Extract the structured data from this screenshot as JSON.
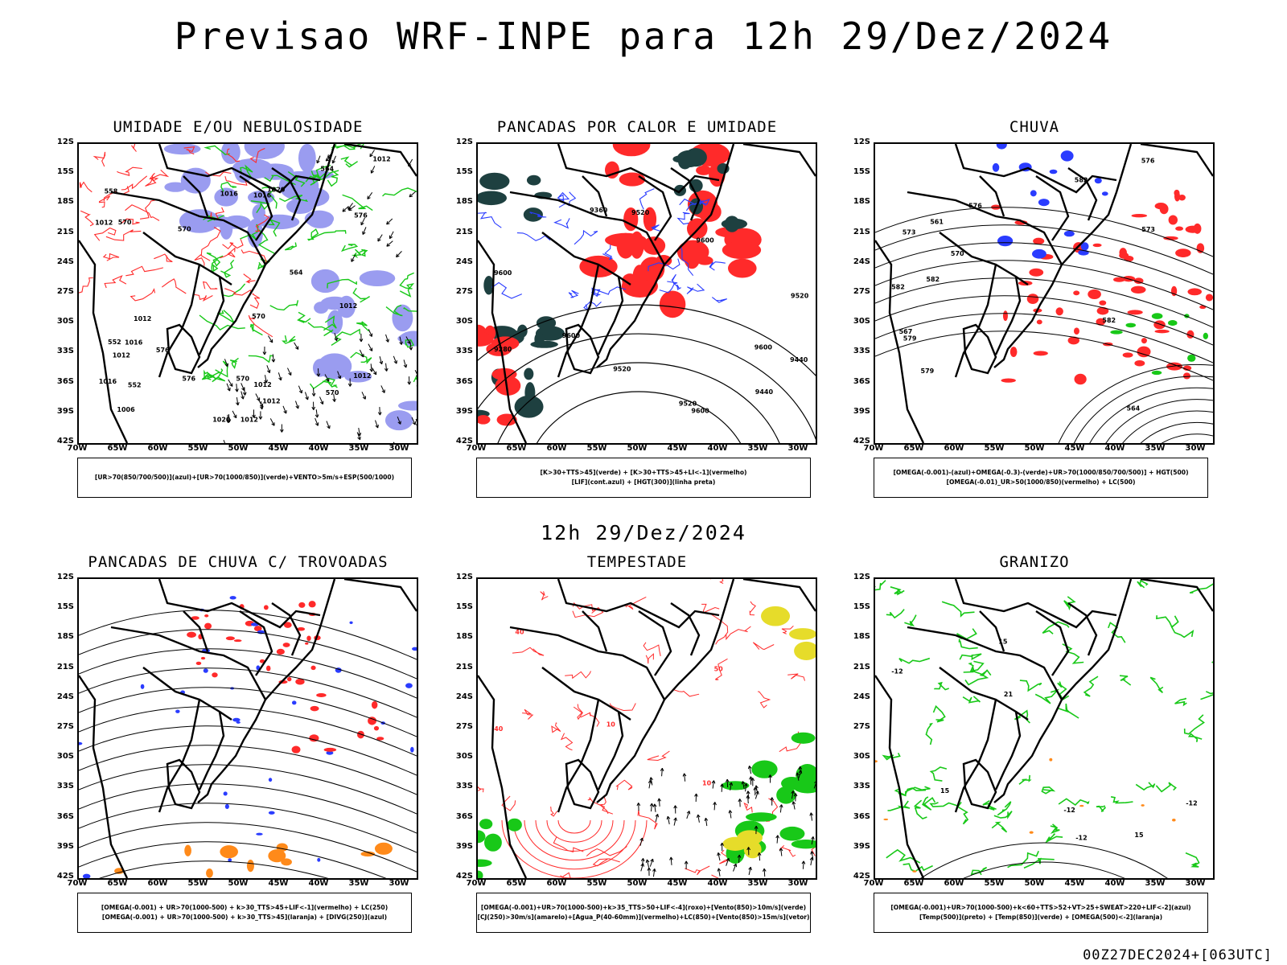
{
  "header": {
    "title": "Previsao WRF-INPE  para 12h 29/Dez/2024"
  },
  "mid_title": "12h 29/Dez/2024",
  "footer": "00Z27DEC2024+[063UTC]",
  "axes": {
    "lat": [
      "12S",
      "15S",
      "18S",
      "21S",
      "24S",
      "27S",
      "30S",
      "33S",
      "36S",
      "39S",
      "42S"
    ],
    "lon": [
      "70W",
      "65W",
      "60W",
      "55W",
      "50W",
      "45W",
      "40W",
      "35W",
      "30W"
    ]
  },
  "colors": {
    "blue": "#2a3cff",
    "lightblue": "#9a9cf0",
    "green": "#18c818",
    "red": "#ff2a2a",
    "darkgreen": "#1e4040",
    "orange": "#ff8a1a",
    "yellow": "#e6dc2a",
    "purple": "#a040c0",
    "black": "#000000"
  },
  "panels": [
    {
      "id": "umidade",
      "title": "UMIDADE E/OU NEBULOSIDADE",
      "legend": [
        "[UR>70(850/700/500)](azul)+[UR>70(1000/850)](verde)+VENTO>5m/s+ESP(500/1000)"
      ],
      "map_labels": [
        "1012",
        "1012",
        "1012",
        "1012",
        "1012",
        "1012",
        "1012",
        "1012",
        "1016",
        "1016",
        "1016",
        "1016",
        "1020",
        "1020",
        "1006",
        "1012",
        "570",
        "570",
        "570",
        "576",
        "576",
        "576",
        "570",
        "564",
        "564",
        "558",
        "552",
        "552",
        "570"
      ]
    },
    {
      "id": "pancadas-calor",
      "title": "PANCADAS POR CALOR E UMIDADE",
      "legend": [
        "[K>30+TTS>45](verde) + [K>30+TTS>45+LI<-1](vermelho)",
        "[LIF](cont.azul) + [HGT(300)](linha preta)"
      ],
      "map_labels": [
        "9600",
        "9600",
        "9600",
        "9600",
        "9600",
        "9520",
        "9520",
        "9520",
        "9520",
        "9440",
        "9440",
        "9360",
        "9280"
      ]
    },
    {
      "id": "chuva",
      "title": "CHUVA",
      "legend": [
        "[OMEGA(-0.001)-(azul)+OMEGA(-0.3)-(verde)+UR>70(1000/850/700/500)] + HGT(500)",
        "[OMEGA(-0.01)_UR>50(1000/850)(vermelho) + LC(500)"
      ],
      "map_labels": [
        "582",
        "582",
        "582",
        "582",
        "579",
        "579",
        "576",
        "576",
        "573",
        "573",
        "570",
        "567",
        "564",
        "561"
      ]
    },
    {
      "id": "pancadas-trovoadas",
      "title": "PANCADAS DE CHUVA C/ TROVOADAS",
      "legend": [
        "[OMEGA(-0.001) + UR>70(1000-500) + k>30_TTS>45+LIF<-1](vermelho) + LC(250)",
        "[OMEGA(-0.001) + UR>70(1000-500) + k>30_TTS>45](laranja) + [DIVG(250)](azul)"
      ],
      "map_labels": []
    },
    {
      "id": "tempestade",
      "title": "TEMPESTADE",
      "legend": [
        "[OMEGA(-0.001)+UR>70(1000-500)+k>35_TTS>50+LIF<-4](roxo)+[Vento(850)>10m/s](verde)",
        "[CJ(250)>30m/s](amarelo)+[Agua_P(40-60mm)](vermelho)+LC(850)+[Vento(850)>15m/s](vetor)"
      ],
      "map_labels": [
        "40",
        "40",
        "10",
        "10",
        "50"
      ]
    },
    {
      "id": "granizo",
      "title": "GRANIZO",
      "legend": [
        "[OMEGA(-0.001)+UR>70(1000-500)+k<60+TTS>52+VT>25+SWEAT>220+LIF<-2](azul)",
        "[Temp(500)](preto) + [Temp(850)](verde) + [OMEGA(500)<-2](laranja)"
      ],
      "map_labels": [
        "-12",
        "-12",
        "-12",
        "-12",
        "15",
        "15",
        "15",
        "21"
      ]
    }
  ]
}
